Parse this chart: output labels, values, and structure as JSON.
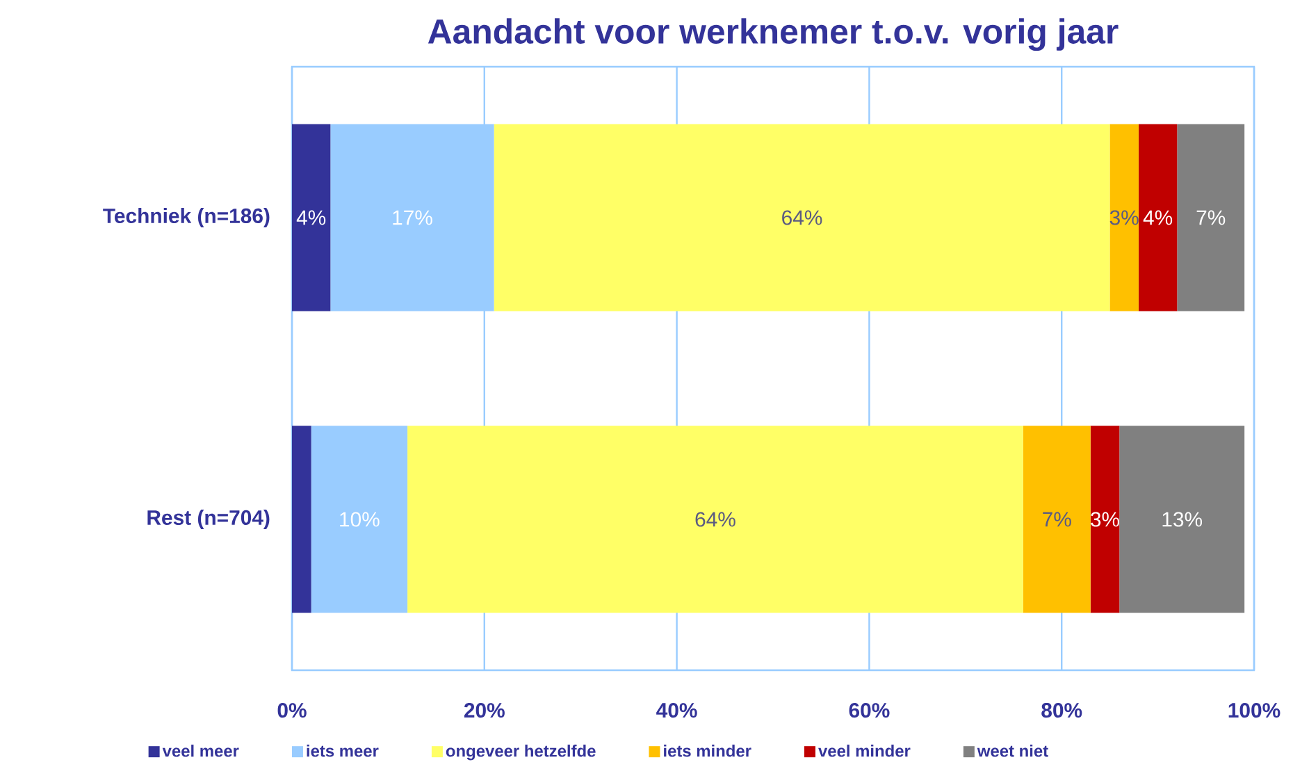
{
  "chart_data": {
    "type": "bar",
    "orientation": "horizontal",
    "stacked": true,
    "title": "Aandacht voor werknemer t.o.v. vorig jaar",
    "categories": [
      "Techniek (n=186)",
      "Rest (n=704)"
    ],
    "series": [
      {
        "name": "veel meer",
        "color": "#333399",
        "values": [
          4,
          2
        ],
        "value_labels": [
          "4%",
          null
        ]
      },
      {
        "name": "iets meer",
        "color": "#99ccff",
        "values": [
          17,
          10
        ],
        "value_labels": [
          "17%",
          "10%"
        ]
      },
      {
        "name": "ongeveer hetzelfde",
        "color": "#ffff66",
        "values": [
          64,
          64
        ],
        "value_labels": [
          "64%",
          "64%"
        ]
      },
      {
        "name": "iets minder",
        "color": "#ffc000",
        "values": [
          3,
          7
        ],
        "value_labels": [
          "3%",
          "7%"
        ]
      },
      {
        "name": "veel minder",
        "color": "#c00000",
        "values": [
          4,
          3
        ],
        "value_labels": [
          "4%",
          "3%"
        ]
      },
      {
        "name": "weet niet",
        "color": "#808080",
        "values": [
          7,
          13
        ],
        "value_labels": [
          "7%",
          "13%"
        ]
      }
    ],
    "xlim": [
      0,
      100
    ],
    "xticks": [
      {
        "value": 0,
        "label": "0%"
      },
      {
        "value": 20,
        "label": "20%"
      },
      {
        "value": 40,
        "label": "40%"
      },
      {
        "value": 60,
        "label": "60%"
      },
      {
        "value": 80,
        "label": "80%"
      },
      {
        "value": 100,
        "label": "100%"
      }
    ],
    "grid": "x",
    "legend": "bottom"
  }
}
